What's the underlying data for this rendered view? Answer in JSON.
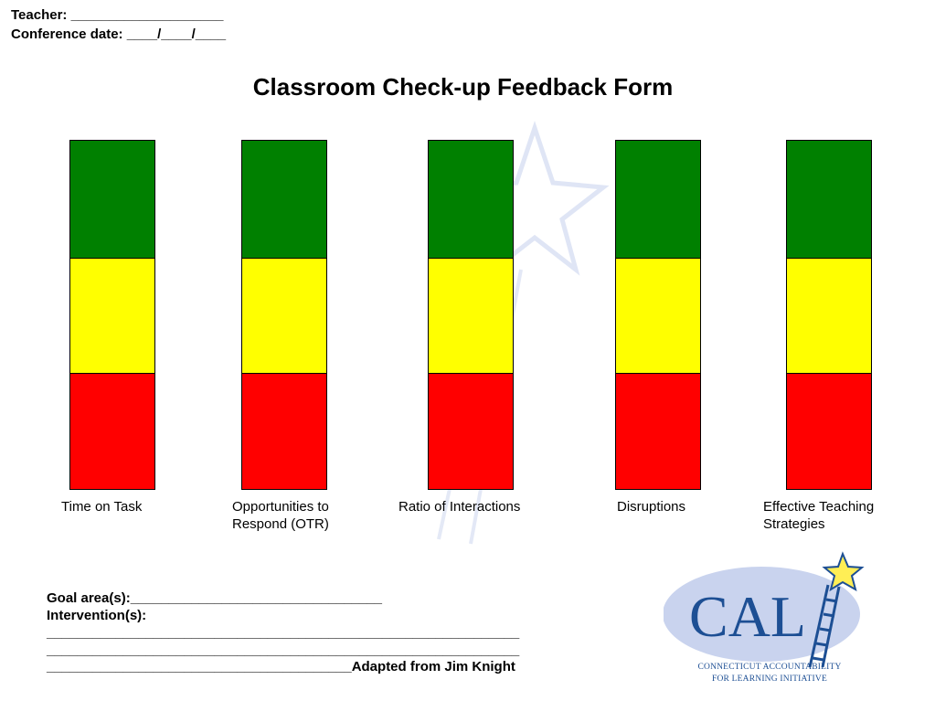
{
  "header": {
    "teacher_line": "Teacher: ____________________",
    "conference_line": "Conference date: ____/____/____"
  },
  "title": "Classroom Check-up Feedback Form",
  "colors": {
    "green": "#008000",
    "yellow": "#ffff00",
    "red": "#ff0000",
    "logo_blue": "#1d4f94",
    "logo_oval": "#c9d3ee"
  },
  "bars": [
    {
      "label_line1": "Time on Task",
      "label_line2": ""
    },
    {
      "label_line1": "Opportunities to",
      "label_line2": "Respond (OTR)"
    },
    {
      "label_line1": "Ratio of Interactions",
      "label_line2": ""
    },
    {
      "label_line1": "Disruptions",
      "label_line2": ""
    },
    {
      "label_line1": "Effective Teaching",
      "label_line2": "Strategies"
    }
  ],
  "bottom": {
    "goal_line": "Goal area(s):_________________________________",
    "intervention_label": "Intervention(s):",
    "line1": "______________________________________________________________",
    "line2": "______________________________________________________________",
    "line3": "________________________________________Adapted from Jim Knight"
  },
  "logo": {
    "text": "CAL",
    "caption_line1": "CONNECTICUT ACCOUNTABILITY",
    "caption_line2": "FOR LEARNING INITIATIVE",
    "icon": "star-ladder-icon"
  }
}
